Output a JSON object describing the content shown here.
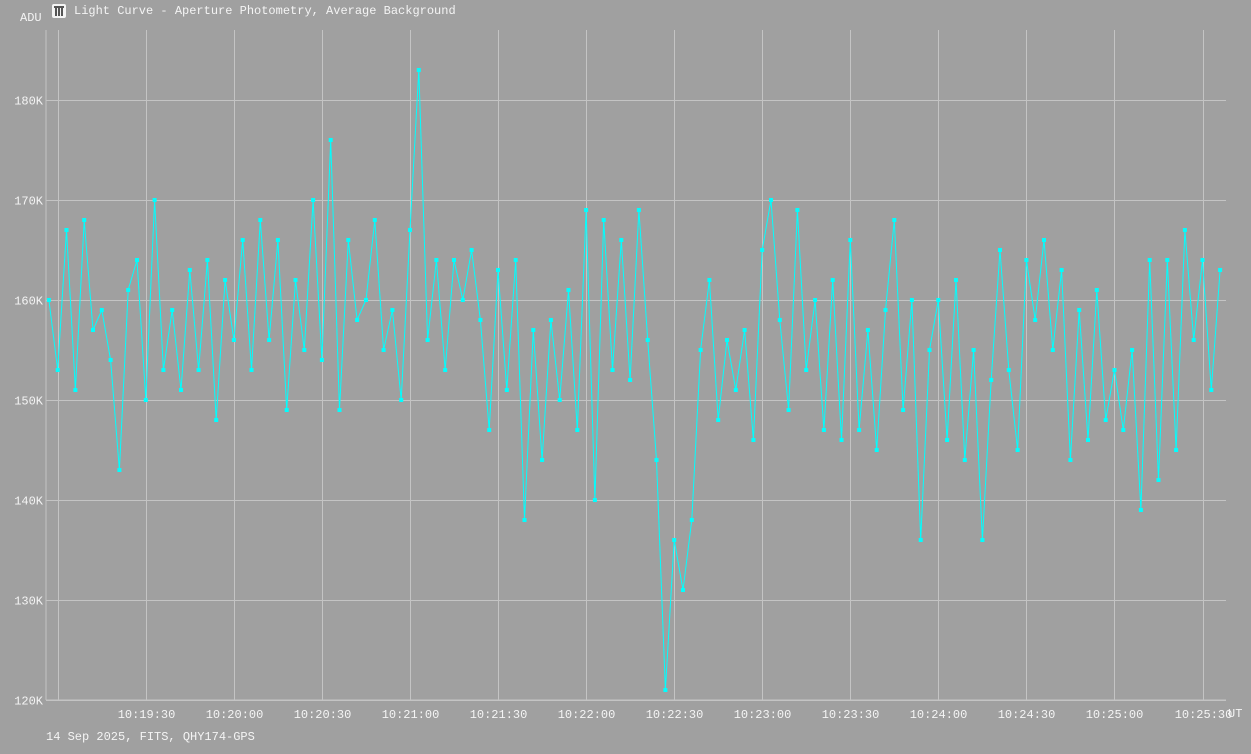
{
  "window": {
    "title": "Light Curve - Aperture Photometry, Average Background",
    "icon": "light-curve-app-icon"
  },
  "footer": "14 Sep 2025, FITS, QHY174-GPS",
  "colors": {
    "background": "#a0a0a0",
    "grid": "#c4c4c4",
    "series": "#00ffff",
    "text": "#f4f4f4"
  },
  "chart_data": {
    "type": "line",
    "title": "Light Curve - Aperture Photometry, Average Background",
    "ylabel": "ADU",
    "xlabel": "UT",
    "xlim": [
      "10:18:56",
      "10:25:38"
    ],
    "ylim": [
      120000,
      187000
    ],
    "grid": true,
    "markers": true,
    "y_ticks": [
      {
        "value": 120000,
        "label": "120K"
      },
      {
        "value": 130000,
        "label": "130K"
      },
      {
        "value": 140000,
        "label": "140K"
      },
      {
        "value": 150000,
        "label": "150K"
      },
      {
        "value": 160000,
        "label": "160K"
      },
      {
        "value": 170000,
        "label": "170K"
      },
      {
        "value": 180000,
        "label": "180K"
      }
    ],
    "x_ticks": [
      {
        "value": "10:19:00",
        "label": ""
      },
      {
        "value": "10:19:30",
        "label": "10:19:30"
      },
      {
        "value": "10:20:00",
        "label": "10:20:00"
      },
      {
        "value": "10:20:30",
        "label": "10:20:30"
      },
      {
        "value": "10:21:00",
        "label": "10:21:00"
      },
      {
        "value": "10:21:30",
        "label": "10:21:30"
      },
      {
        "value": "10:22:00",
        "label": "10:22:00"
      },
      {
        "value": "10:22:30",
        "label": "10:22:30"
      },
      {
        "value": "10:23:00",
        "label": "10:23:00"
      },
      {
        "value": "10:23:30",
        "label": "10:23:30"
      },
      {
        "value": "10:24:00",
        "label": "10:24:00"
      },
      {
        "value": "10:24:30",
        "label": "10:24:30"
      },
      {
        "value": "10:25:00",
        "label": "10:25:00"
      },
      {
        "value": "10:25:30",
        "label": "10:25:30"
      }
    ],
    "series": [
      {
        "x": [
          "10:18:57",
          "10:19:00",
          "10:19:03",
          "10:19:06",
          "10:19:09",
          "10:19:12",
          "10:19:15",
          "10:19:18",
          "10:19:21",
          "10:19:24",
          "10:19:27",
          "10:19:30",
          "10:19:33",
          "10:19:36",
          "10:19:39",
          "10:19:42",
          "10:19:45",
          "10:19:48",
          "10:19:51",
          "10:19:54",
          "10:19:57",
          "10:20:00",
          "10:20:03",
          "10:20:06",
          "10:20:09",
          "10:20:12",
          "10:20:15",
          "10:20:18",
          "10:20:21",
          "10:20:24",
          "10:20:27",
          "10:20:30",
          "10:20:33",
          "10:20:36",
          "10:20:39",
          "10:20:42",
          "10:20:45",
          "10:20:48",
          "10:20:51",
          "10:20:54",
          "10:20:57",
          "10:21:00",
          "10:21:03",
          "10:21:06",
          "10:21:09",
          "10:21:12",
          "10:21:15",
          "10:21:18",
          "10:21:21",
          "10:21:24",
          "10:21:27",
          "10:21:30",
          "10:21:33",
          "10:21:36",
          "10:21:39",
          "10:21:42",
          "10:21:45",
          "10:21:48",
          "10:21:51",
          "10:21:54",
          "10:21:57",
          "10:22:00",
          "10:22:03",
          "10:22:06",
          "10:22:09",
          "10:22:12",
          "10:22:15",
          "10:22:18",
          "10:22:21",
          "10:22:24",
          "10:22:27",
          "10:22:30",
          "10:22:33",
          "10:22:36",
          "10:22:39",
          "10:22:42",
          "10:22:45",
          "10:22:48",
          "10:22:51",
          "10:22:54",
          "10:22:57",
          "10:23:00",
          "10:23:03",
          "10:23:06",
          "10:23:09",
          "10:23:12",
          "10:23:15",
          "10:23:18",
          "10:23:21",
          "10:23:24",
          "10:23:27",
          "10:23:30",
          "10:23:33",
          "10:23:36",
          "10:23:39",
          "10:23:42",
          "10:23:45",
          "10:23:48",
          "10:23:51",
          "10:23:54",
          "10:23:57",
          "10:24:00",
          "10:24:03",
          "10:24:06",
          "10:24:09",
          "10:24:12",
          "10:24:15",
          "10:24:18",
          "10:24:21",
          "10:24:24",
          "10:24:27",
          "10:24:30",
          "10:24:33",
          "10:24:36",
          "10:24:39",
          "10:24:42",
          "10:24:45",
          "10:24:48",
          "10:24:51",
          "10:24:54",
          "10:24:57",
          "10:25:00",
          "10:25:03",
          "10:25:06",
          "10:25:09",
          "10:25:12",
          "10:25:15",
          "10:25:18",
          "10:25:21",
          "10:25:24",
          "10:25:27",
          "10:25:30",
          "10:25:33",
          "10:25:36"
        ],
        "y": [
          160000,
          153000,
          167000,
          151000,
          168000,
          157000,
          159000,
          154000,
          143000,
          161000,
          164000,
          150000,
          170000,
          153000,
          159000,
          151000,
          163000,
          153000,
          164000,
          148000,
          162000,
          156000,
          166000,
          153000,
          168000,
          156000,
          166000,
          149000,
          162000,
          155000,
          170000,
          154000,
          176000,
          149000,
          166000,
          158000,
          160000,
          168000,
          155000,
          159000,
          150000,
          167000,
          183000,
          156000,
          164000,
          153000,
          164000,
          160000,
          165000,
          158000,
          147000,
          163000,
          151000,
          164000,
          138000,
          157000,
          144000,
          158000,
          150000,
          161000,
          147000,
          169000,
          140000,
          168000,
          153000,
          166000,
          152000,
          169000,
          156000,
          144000,
          121000,
          136000,
          131000,
          138000,
          155000,
          162000,
          148000,
          156000,
          151000,
          157000,
          146000,
          165000,
          170000,
          158000,
          149000,
          169000,
          153000,
          160000,
          147000,
          162000,
          146000,
          166000,
          147000,
          157000,
          145000,
          159000,
          168000,
          149000,
          160000,
          136000,
          155000,
          160000,
          146000,
          162000,
          144000,
          155000,
          136000,
          152000,
          165000,
          153000,
          145000,
          164000,
          158000,
          166000,
          155000,
          163000,
          144000,
          159000,
          146000,
          161000,
          148000,
          153000,
          147000,
          155000,
          139000,
          164000,
          142000,
          164000,
          145000,
          167000,
          156000,
          164000,
          151000,
          163000
        ]
      }
    ]
  }
}
